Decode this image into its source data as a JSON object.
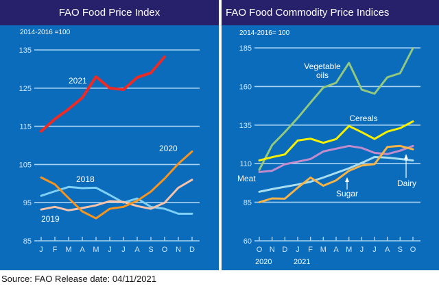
{
  "source_note": "Source: FAO Release date: 04/11/2021",
  "colors": {
    "panel_bg": "#0b6cbc",
    "header_bg": "#27206b",
    "grid": "#a9d4f3",
    "text": "#ffffff"
  },
  "chart_data": [
    {
      "type": "line",
      "title": "FAO Food Price Index",
      "subtitle": "2014-2016 =100",
      "xlabel": "",
      "ylabel": "",
      "ylim": [
        85,
        135
      ],
      "yticks": [
        85,
        95,
        105,
        115,
        125,
        135
      ],
      "grid": true,
      "categories": [
        "J",
        "F",
        "M",
        "A",
        "M",
        "J",
        "J",
        "A",
        "S",
        "O",
        "N",
        "D"
      ],
      "series": [
        {
          "name": "2018",
          "color": "#7fd0f5",
          "values": [
            96.8,
            98.0,
            99.1,
            98.8,
            98.9,
            97.0,
            95.0,
            96.1,
            93.9,
            93.4,
            92.1,
            92.1
          ]
        },
        {
          "name": "2019",
          "color": "#f6c3aa",
          "values": [
            93.2,
            93.9,
            93.0,
            93.6,
            94.3,
            95.4,
            95.2,
            94.1,
            93.4,
            95.0,
            98.9,
            101.0
          ]
        },
        {
          "name": "2020",
          "color": "#f7941d",
          "values": [
            101.6,
            99.8,
            96.2,
            92.7,
            90.9,
            93.4,
            93.9,
            95.5,
            97.9,
            101.3,
            105.2,
            108.4
          ]
        },
        {
          "name": "2021",
          "color": "#ee2a24",
          "values": [
            113.7,
            116.9,
            119.5,
            122.5,
            128.0,
            125.0,
            124.6,
            127.8,
            129.0,
            133.2,
            null,
            null
          ]
        }
      ],
      "annotations": [
        {
          "text": "2021",
          "series": "2021"
        },
        {
          "text": "2020",
          "series": "2020"
        },
        {
          "text": "2018",
          "series": "2018"
        },
        {
          "text": "2019",
          "series": "2019"
        }
      ]
    },
    {
      "type": "line",
      "title": "FAO Food Commodity Price Indices",
      "subtitle": "2014-2016= 100",
      "xlabel": "",
      "ylabel": "",
      "ylim": [
        60,
        185
      ],
      "yticks": [
        60,
        85,
        110,
        135,
        160,
        185
      ],
      "grid": true,
      "categories": [
        "O",
        "N",
        "D",
        "J",
        "F",
        "M",
        "A",
        "M",
        "J",
        "J",
        "A",
        "S",
        "O"
      ],
      "year_labels": [
        {
          "text": "2020",
          "at_index": 0
        },
        {
          "text": "2021",
          "at_index": 3
        }
      ],
      "series": [
        {
          "name": "Vegetable oils",
          "color": "#93c97e",
          "values": [
            106.0,
            122.0,
            130.5,
            139.6,
            149.6,
            159.3,
            162.4,
            175.3,
            158.0,
            155.3,
            166.0,
            168.6,
            184.8
          ]
        },
        {
          "name": "Cereals",
          "color": "#f8f000",
          "values": [
            112.1,
            114.2,
            116.0,
            125.0,
            126.2,
            123.5,
            125.9,
            134.4,
            130.4,
            126.0,
            130.8,
            133.0,
            137.4
          ]
        },
        {
          "name": "Meat",
          "color": "#c28ccc",
          "values": [
            104.6,
            105.4,
            109.6,
            111.3,
            113.0,
            117.9,
            119.7,
            121.5,
            120.2,
            117.0,
            116.2,
            118.4,
            121.5
          ]
        },
        {
          "name": "Dairy",
          "color": "#a8def0",
          "values": [
            91.8,
            93.5,
            95.0,
            96.5,
            98.3,
            101.0,
            104.0,
            107.0,
            110.5,
            114.3,
            113.9,
            113.0,
            112.1
          ]
        },
        {
          "name": "Sugar",
          "color": "#f8b347",
          "values": [
            85.0,
            87.5,
            87.3,
            94.4,
            101.0,
            95.7,
            99.2,
            105.4,
            108.8,
            109.7,
            120.8,
            121.5,
            119.3
          ]
        }
      ],
      "annotations": [
        {
          "text": "Vegetable",
          "series": "Vegetable oils"
        },
        {
          "text": "oils",
          "series": "Vegetable oils"
        },
        {
          "text": "Cereals",
          "series": "Cereals"
        },
        {
          "text": "Meat",
          "series": "Meat"
        },
        {
          "text": "Sugar",
          "series": "Sugar"
        },
        {
          "text": "Dairy",
          "series": "Dairy"
        }
      ]
    }
  ]
}
